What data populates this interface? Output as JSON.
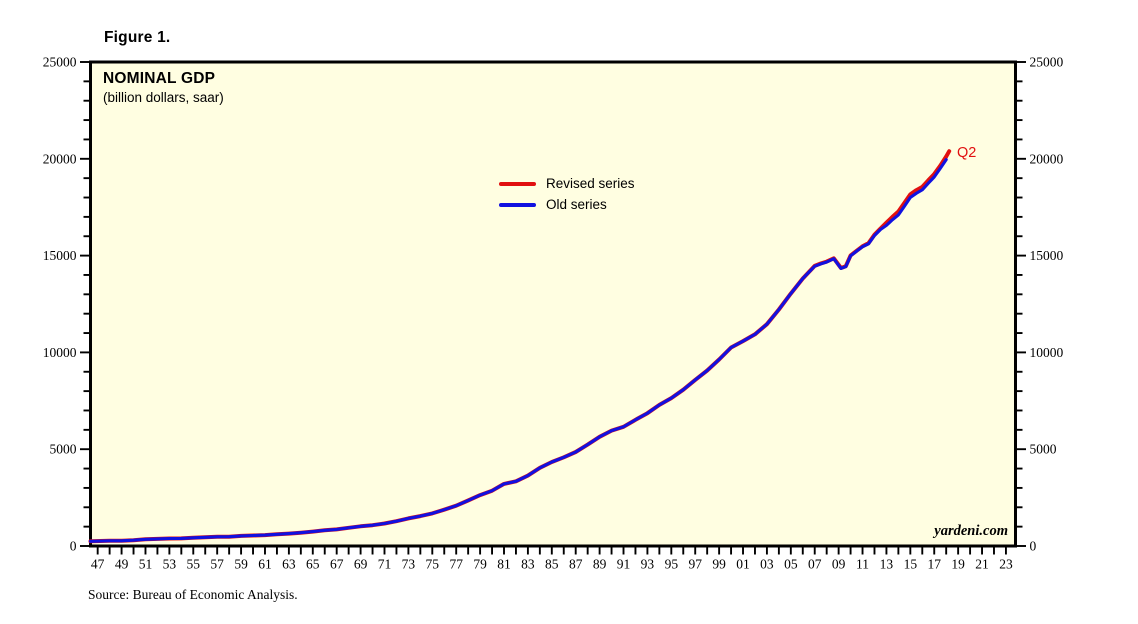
{
  "figure_title": "Figure 1.",
  "chart": {
    "title": "NOMINAL GDP",
    "subtitle": "(billion dollars, saar)",
    "latest_point_label": "Q2",
    "latest_point_color": "#e11010",
    "watermark": "yardeni.com",
    "plot_background": "#fffee1",
    "frame_color": "#000000"
  },
  "source": "Source: Bureau of Economic Analysis.",
  "chart_data": {
    "type": "line",
    "title": "NOMINAL GDP",
    "subtitle": "(billion dollars, saar)",
    "xlabel": "",
    "ylabel": "billion dollars, saar",
    "grid": false,
    "legend_position": "upper-middle-left",
    "xlim": [
      1946.4,
      2023.8
    ],
    "ylim": [
      0,
      25000
    ],
    "x_ticks": {
      "start_year": 1947,
      "end_year": 2023,
      "minor_step": 1,
      "label_step": 2,
      "labels": [
        "47",
        "49",
        "51",
        "53",
        "55",
        "57",
        "59",
        "61",
        "63",
        "65",
        "67",
        "69",
        "71",
        "73",
        "75",
        "77",
        "79",
        "81",
        "83",
        "85",
        "87",
        "89",
        "91",
        "93",
        "95",
        "97",
        "99",
        "01",
        "03",
        "05",
        "07",
        "09",
        "11",
        "13",
        "15",
        "17",
        "19",
        "21",
        "23"
      ]
    },
    "y_ticks": {
      "minor_step": 1000,
      "major_step": 5000,
      "labels": [
        "0",
        "5000",
        "10000",
        "15000",
        "20000",
        "25000"
      ],
      "values": [
        0,
        5000,
        10000,
        15000,
        20000,
        25000
      ],
      "sides": "both"
    },
    "annotations": [
      {
        "text": "Q2",
        "x": 2018.4,
        "y": 20400,
        "color": "#e11010"
      }
    ],
    "series": [
      {
        "name": "Revised series",
        "color": "#e11010",
        "x": [
          1946.4,
          1948,
          1949,
          1950,
          1951,
          1952,
          1953,
          1954,
          1955,
          1956,
          1957,
          1958,
          1959,
          1960,
          1961,
          1962,
          1963,
          1964,
          1965,
          1966,
          1967,
          1968,
          1969,
          1970,
          1971,
          1972,
          1973,
          1974,
          1975,
          1976,
          1977,
          1978,
          1979,
          1980,
          1981,
          1982,
          1983,
          1984,
          1985,
          1986,
          1987,
          1988,
          1989,
          1990,
          1991,
          1992,
          1993,
          1994,
          1995,
          1996,
          1997,
          1998,
          1999,
          2000,
          2001,
          2002,
          2003,
          2004,
          2005,
          2006,
          2007,
          2007.5,
          2008,
          2008.6,
          2009.2,
          2009.6,
          2010,
          2010.5,
          2011,
          2011.5,
          2012,
          2012.5,
          2013,
          2013.5,
          2014,
          2014.5,
          2015,
          2015.5,
          2016,
          2016.5,
          2017,
          2017.5,
          2018,
          2018.25
        ],
        "values": [
          244,
          269,
          267,
          300,
          347,
          367,
          389,
          391,
          426,
          450,
          474,
          482,
          522,
          542,
          562,
          604,
          638,
          685,
          742,
          813,
          860,
          941,
          1019,
          1073,
          1164,
          1279,
          1425,
          1545,
          1685,
          1873,
          2082,
          2352,
          2627,
          2857,
          3207,
          3344,
          3634,
          4038,
          4339,
          4580,
          4855,
          5236,
          5642,
          5963,
          6158,
          6520,
          6859,
          7287,
          7640,
          8073,
          8578,
          9063,
          9631,
          10252,
          10582,
          10936,
          11458,
          12214,
          13037,
          13815,
          14470,
          14590,
          14690,
          14860,
          14360,
          14450,
          15010,
          15250,
          15480,
          15640,
          16080,
          16400,
          16700,
          17000,
          17280,
          17720,
          18160,
          18380,
          18550,
          18890,
          19210,
          19640,
          20120,
          20390
        ]
      },
      {
        "name": "Old series",
        "color": "#1111e0",
        "x": [
          1946.4,
          1948,
          1949,
          1950,
          1951,
          1952,
          1953,
          1954,
          1955,
          1956,
          1957,
          1958,
          1959,
          1960,
          1961,
          1962,
          1963,
          1964,
          1965,
          1966,
          1967,
          1968,
          1969,
          1970,
          1971,
          1972,
          1973,
          1974,
          1975,
          1976,
          1977,
          1978,
          1979,
          1980,
          1981,
          1982,
          1983,
          1984,
          1985,
          1986,
          1987,
          1988,
          1989,
          1990,
          1991,
          1992,
          1993,
          1994,
          1995,
          1996,
          1997,
          1998,
          1999,
          2000,
          2001,
          2002,
          2003,
          2004,
          2005,
          2006,
          2007,
          2007.5,
          2008,
          2008.6,
          2009.2,
          2009.6,
          2010,
          2010.5,
          2011,
          2011.5,
          2012,
          2012.5,
          2013,
          2013.5,
          2014,
          2014.5,
          2015,
          2015.5,
          2016,
          2016.5,
          2017,
          2017.5,
          2018
        ],
        "values": [
          244,
          269,
          267,
          300,
          347,
          367,
          389,
          391,
          426,
          450,
          474,
          482,
          522,
          542,
          562,
          604,
          638,
          685,
          742,
          813,
          860,
          941,
          1019,
          1073,
          1164,
          1279,
          1425,
          1545,
          1685,
          1873,
          2082,
          2352,
          2627,
          2857,
          3207,
          3344,
          3634,
          4038,
          4339,
          4580,
          4855,
          5236,
          5642,
          5963,
          6158,
          6520,
          6859,
          7287,
          7640,
          8073,
          8578,
          9063,
          9631,
          10252,
          10582,
          10936,
          11458,
          12214,
          13037,
          13815,
          14452,
          14570,
          14670,
          14840,
          14340,
          14430,
          14990,
          15230,
          15460,
          15610,
          16040,
          16350,
          16560,
          16850,
          17100,
          17550,
          18000,
          18220,
          18400,
          18740,
          19060,
          19500,
          19960
        ]
      }
    ]
  }
}
